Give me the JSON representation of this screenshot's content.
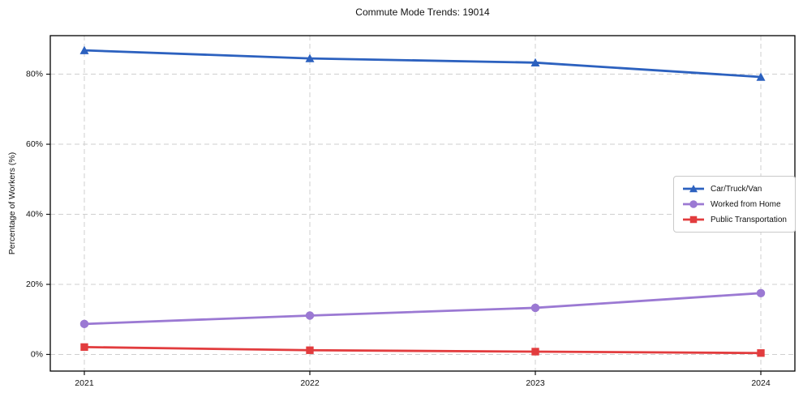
{
  "title": "Commute Mode Trends: 19014",
  "chart_data": {
    "type": "line",
    "title": "Commute Mode Trends: 19014",
    "xlabel": "",
    "ylabel": "Percentage of Workers (%)",
    "categories": [
      "2021",
      "2022",
      "2023",
      "2024"
    ],
    "series": [
      {
        "name": "Car/Truck/Van",
        "values": [
          86.8,
          84.5,
          83.3,
          79.2
        ],
        "color": "#2c61bf",
        "marker": "triangle"
      },
      {
        "name": "Worked from Home",
        "values": [
          8.7,
          11.1,
          13.3,
          17.5
        ],
        "color": "#9b79d3",
        "marker": "circle"
      },
      {
        "name": "Public Transportation",
        "values": [
          2.1,
          1.2,
          0.8,
          0.4
        ],
        "color": "#e23c3e",
        "marker": "square"
      }
    ],
    "y_tick_values": [
      0,
      20,
      40,
      60,
      80
    ],
    "y_tick_labels": [
      "0%",
      "20%",
      "40%",
      "60%",
      "80%"
    ],
    "ylim": [
      -4.75,
      91
    ],
    "xlim": [
      -0.151,
      3.151
    ],
    "grid": true,
    "grid_style": "dashed",
    "legend_position": "center right"
  }
}
